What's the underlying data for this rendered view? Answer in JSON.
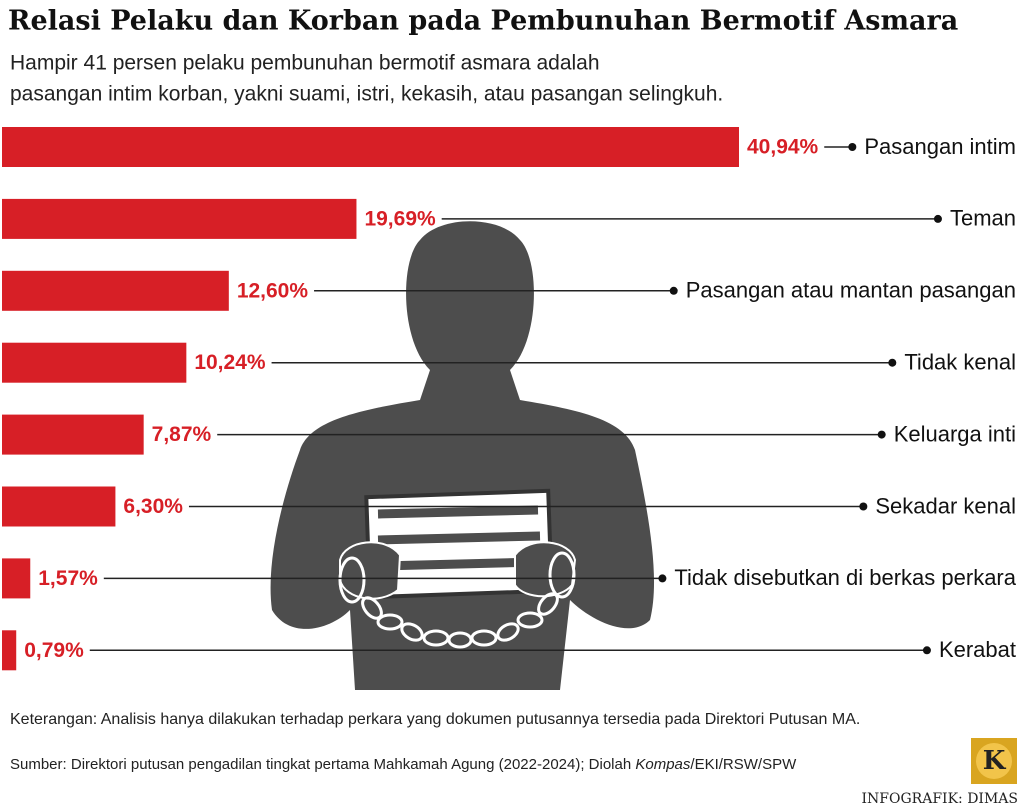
{
  "chart_data": {
    "type": "bar",
    "orientation": "horizontal",
    "title": "Relasi Pelaku dan Korban pada Pembunuhan Bermotif Asmara",
    "subtitle": [
      "Hampir 41 persen pelaku pembunuhan bermotif asmara adalah",
      "pasangan intim korban, yakni suami, istri, kekasih, atau pasangan selingkuh."
    ],
    "categories": [
      "Pasangan intim",
      "Teman",
      "Pasangan atau mantan pasangan",
      "Tidak kenal",
      "Keluarga inti",
      "Sekadar kenal",
      "Tidak disebutkan di berkas perkara",
      "Kerabat"
    ],
    "values": [
      40.94,
      19.69,
      12.6,
      10.24,
      7.87,
      6.3,
      1.57,
      0.79
    ],
    "value_labels": [
      "40,94%",
      "19,69%",
      "12,60%",
      "10,24%",
      "7,87%",
      "6,30%",
      "1,57%",
      "0,79%"
    ],
    "color": "#d71f26",
    "note": "Keterangan: Analisis hanya dilakukan terhadap perkara yang dokumen putusannya tersedia pada Direktori Putusan MA.",
    "source": [
      "Sumber: Direktori putusan pengadilan tingkat pertama Mahkamah Agung (2022-2024); Diolah ",
      "Kompas",
      "/EKI/RSW/SPW"
    ],
    "logo": "K",
    "credit": "INFOGRAFIK: DIMAS"
  }
}
